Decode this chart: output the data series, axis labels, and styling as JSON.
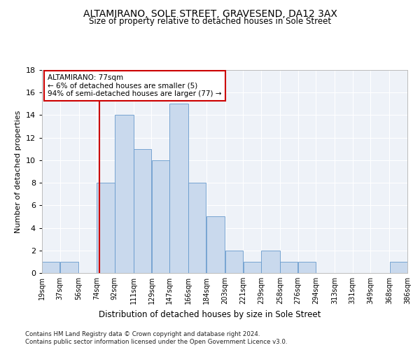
{
  "title": "ALTAMIRANO, SOLE STREET, GRAVESEND, DA12 3AX",
  "subtitle": "Size of property relative to detached houses in Sole Street",
  "xlabel": "Distribution of detached houses by size in Sole Street",
  "ylabel": "Number of detached properties",
  "bar_color": "#c9d9ed",
  "bar_edge_color": "#6699cc",
  "background_color": "#eef2f8",
  "vline_x": 77,
  "vline_color": "#cc0000",
  "annotation_title": "ALTAMIRANO: 77sqm",
  "annotation_line1": "← 6% of detached houses are smaller (5)",
  "annotation_line2": "94% of semi-detached houses are larger (77) →",
  "annotation_box_color": "#cc0000",
  "bin_edges": [
    19,
    37,
    56,
    74,
    92,
    111,
    129,
    147,
    166,
    184,
    203,
    221,
    239,
    258,
    276,
    294,
    313,
    331,
    349,
    368,
    386
  ],
  "bar_heights": [
    1,
    1,
    0,
    8,
    14,
    11,
    10,
    15,
    8,
    5,
    2,
    1,
    2,
    1,
    1,
    0,
    0,
    0,
    0,
    1
  ],
  "ylim": [
    0,
    18
  ],
  "yticks": [
    0,
    2,
    4,
    6,
    8,
    10,
    12,
    14,
    16,
    18
  ],
  "footnote1": "Contains HM Land Registry data © Crown copyright and database right 2024.",
  "footnote2": "Contains public sector information licensed under the Open Government Licence v3.0."
}
